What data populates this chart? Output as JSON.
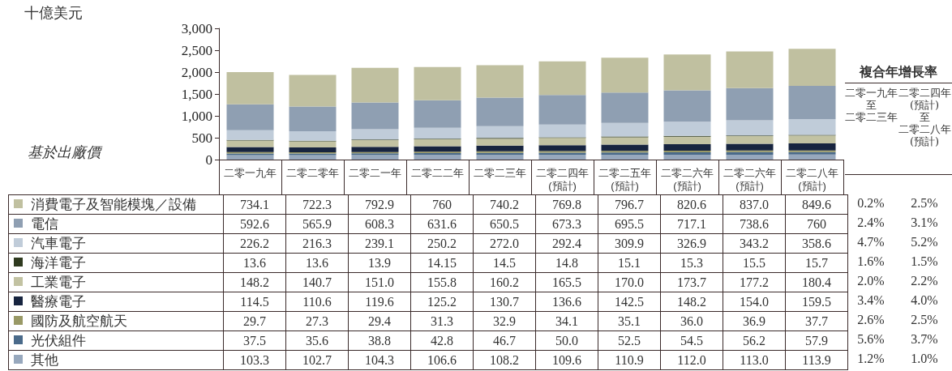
{
  "chart_data": {
    "type": "bar",
    "stacked": true,
    "categories": [
      "二零一九年",
      "二零二零年",
      "二零二一年",
      "二零二二年",
      "二零二三年",
      "二零二四年\n(預計)",
      "二零二五年\n(預計)",
      "二零二六年\n(預計)",
      "二零二六年\n(預計)",
      "二零二八年\n(預計)"
    ],
    "ylim": [
      0,
      3000
    ],
    "yticks": [
      0,
      {
        "value": 500,
        "label": "500"
      },
      {
        "value": 1000,
        "label": "1,000"
      },
      {
        "value": 1500,
        "label": "1,500"
      },
      {
        "value": 2000,
        "label": "2,000"
      },
      {
        "value": 2500,
        "label": "2,500"
      },
      {
        "value": 3000,
        "label": "3,000"
      }
    ],
    "legend": "bottom",
    "series": [
      {
        "name": "其他",
        "color": "#97a8bd",
        "values": [
          103.3,
          102.7,
          104.3,
          106.6,
          108.2,
          109.6,
          110.9,
          112.0,
          113.0,
          113.9
        ],
        "value_labels": [
          "103.3",
          "102.7",
          "104.3",
          "106.6",
          "108.2",
          "109.6",
          "110.9",
          "112.0",
          "113.0",
          "113.9"
        ]
      },
      {
        "name": "光伏組件",
        "color": "#4a6a8a",
        "values": [
          37.5,
          35.6,
          38.8,
          42.8,
          46.7,
          50.0,
          52.5,
          54.5,
          56.2,
          57.9
        ],
        "value_labels": [
          "37.5",
          "35.6",
          "38.8",
          "42.8",
          "46.7",
          "50.0",
          "52.5",
          "54.5",
          "56.2",
          "57.9"
        ]
      },
      {
        "name": "國防及航空航天",
        "color": "#999966",
        "values": [
          29.7,
          27.3,
          29.4,
          31.3,
          32.9,
          34.1,
          35.1,
          36.0,
          36.9,
          37.7
        ],
        "value_labels": [
          "29.7",
          "27.3",
          "29.4",
          "31.3",
          "32.9",
          "34.1",
          "35.1",
          "36.0",
          "36.9",
          "37.7"
        ]
      },
      {
        "name": "醫療電子",
        "color": "#17243f",
        "values": [
          114.5,
          110.6,
          119.6,
          125.2,
          130.7,
          136.6,
          142.5,
          148.2,
          154.0,
          159.5
        ],
        "value_labels": [
          "114.5",
          "110.6",
          "119.6",
          "125.2",
          "130.7",
          "136.6",
          "142.5",
          "148.2",
          "154.0",
          "159.5"
        ]
      },
      {
        "name": "工業電子",
        "color": "#c2c2a2",
        "values": [
          148.2,
          140.7,
          151.0,
          155.8,
          160.2,
          165.5,
          170.0,
          173.7,
          177.2,
          180.4
        ],
        "value_labels": [
          "148.2",
          "140.7",
          "151.0",
          "155.8",
          "160.2",
          "165.5",
          "170.0",
          "173.7",
          "177.2",
          "180.4"
        ]
      },
      {
        "name": "海洋電子",
        "color": "#2f3a1f",
        "values": [
          13.6,
          13.6,
          13.9,
          14.15,
          14.5,
          14.8,
          15.1,
          15.3,
          15.5,
          15.7
        ],
        "value_labels": [
          "13.6",
          "13.6",
          "13.9",
          "14.15",
          "14.5",
          "14.8",
          "15.1",
          "15.3",
          "15.5",
          "15.7"
        ]
      },
      {
        "name": "汽車電子",
        "color": "#c0ccd9",
        "values": [
          226.2,
          216.3,
          239.1,
          250.2,
          272.0,
          292.4,
          309.9,
          326.9,
          343.2,
          358.6
        ],
        "value_labels": [
          "226.2",
          "216.3",
          "239.1",
          "250.2",
          "272.0",
          "292.4",
          "309.9",
          "326.9",
          "343.2",
          "358.6"
        ]
      },
      {
        "name": "電信",
        "color": "#8f9fb2",
        "values": [
          592.6,
          565.9,
          608.3,
          631.6,
          650.5,
          673.3,
          695.5,
          717.1,
          738.6,
          760
        ],
        "value_labels": [
          "592.6",
          "565.9",
          "608.3",
          "631.6",
          "650.5",
          "673.3",
          "695.5",
          "717.1",
          "738.6",
          "760"
        ]
      },
      {
        "name": "消費電子及智能模塊／設備",
        "color": "#c0c0a0",
        "values": [
          734.1,
          722.3,
          792.9,
          760,
          740.2,
          769.8,
          796.7,
          820.6,
          837.0,
          849.6
        ],
        "value_labels": [
          "734.1",
          "722.3",
          "792.9",
          "760",
          "740.2",
          "769.8",
          "796.7",
          "820.6",
          "837.0",
          "849.6"
        ]
      }
    ],
    "annotations": [
      "十億美元",
      "基於出廠價",
      "複合年增長率",
      "二零一九年至二零二三年",
      "二零二四年(預計)至二零二八年(預計)",
      "0.2%",
      "2.5%",
      "2.4%",
      "3.1%",
      "4.7%",
      "5.2%",
      "1.6%",
      "1.5%",
      "2.0%",
      "2.2%",
      "3.4%",
      "4.0%",
      "2.6%",
      "2.5%",
      "5.6%",
      "3.7%",
      "1.2%",
      "1.0%"
    ]
  }
}
